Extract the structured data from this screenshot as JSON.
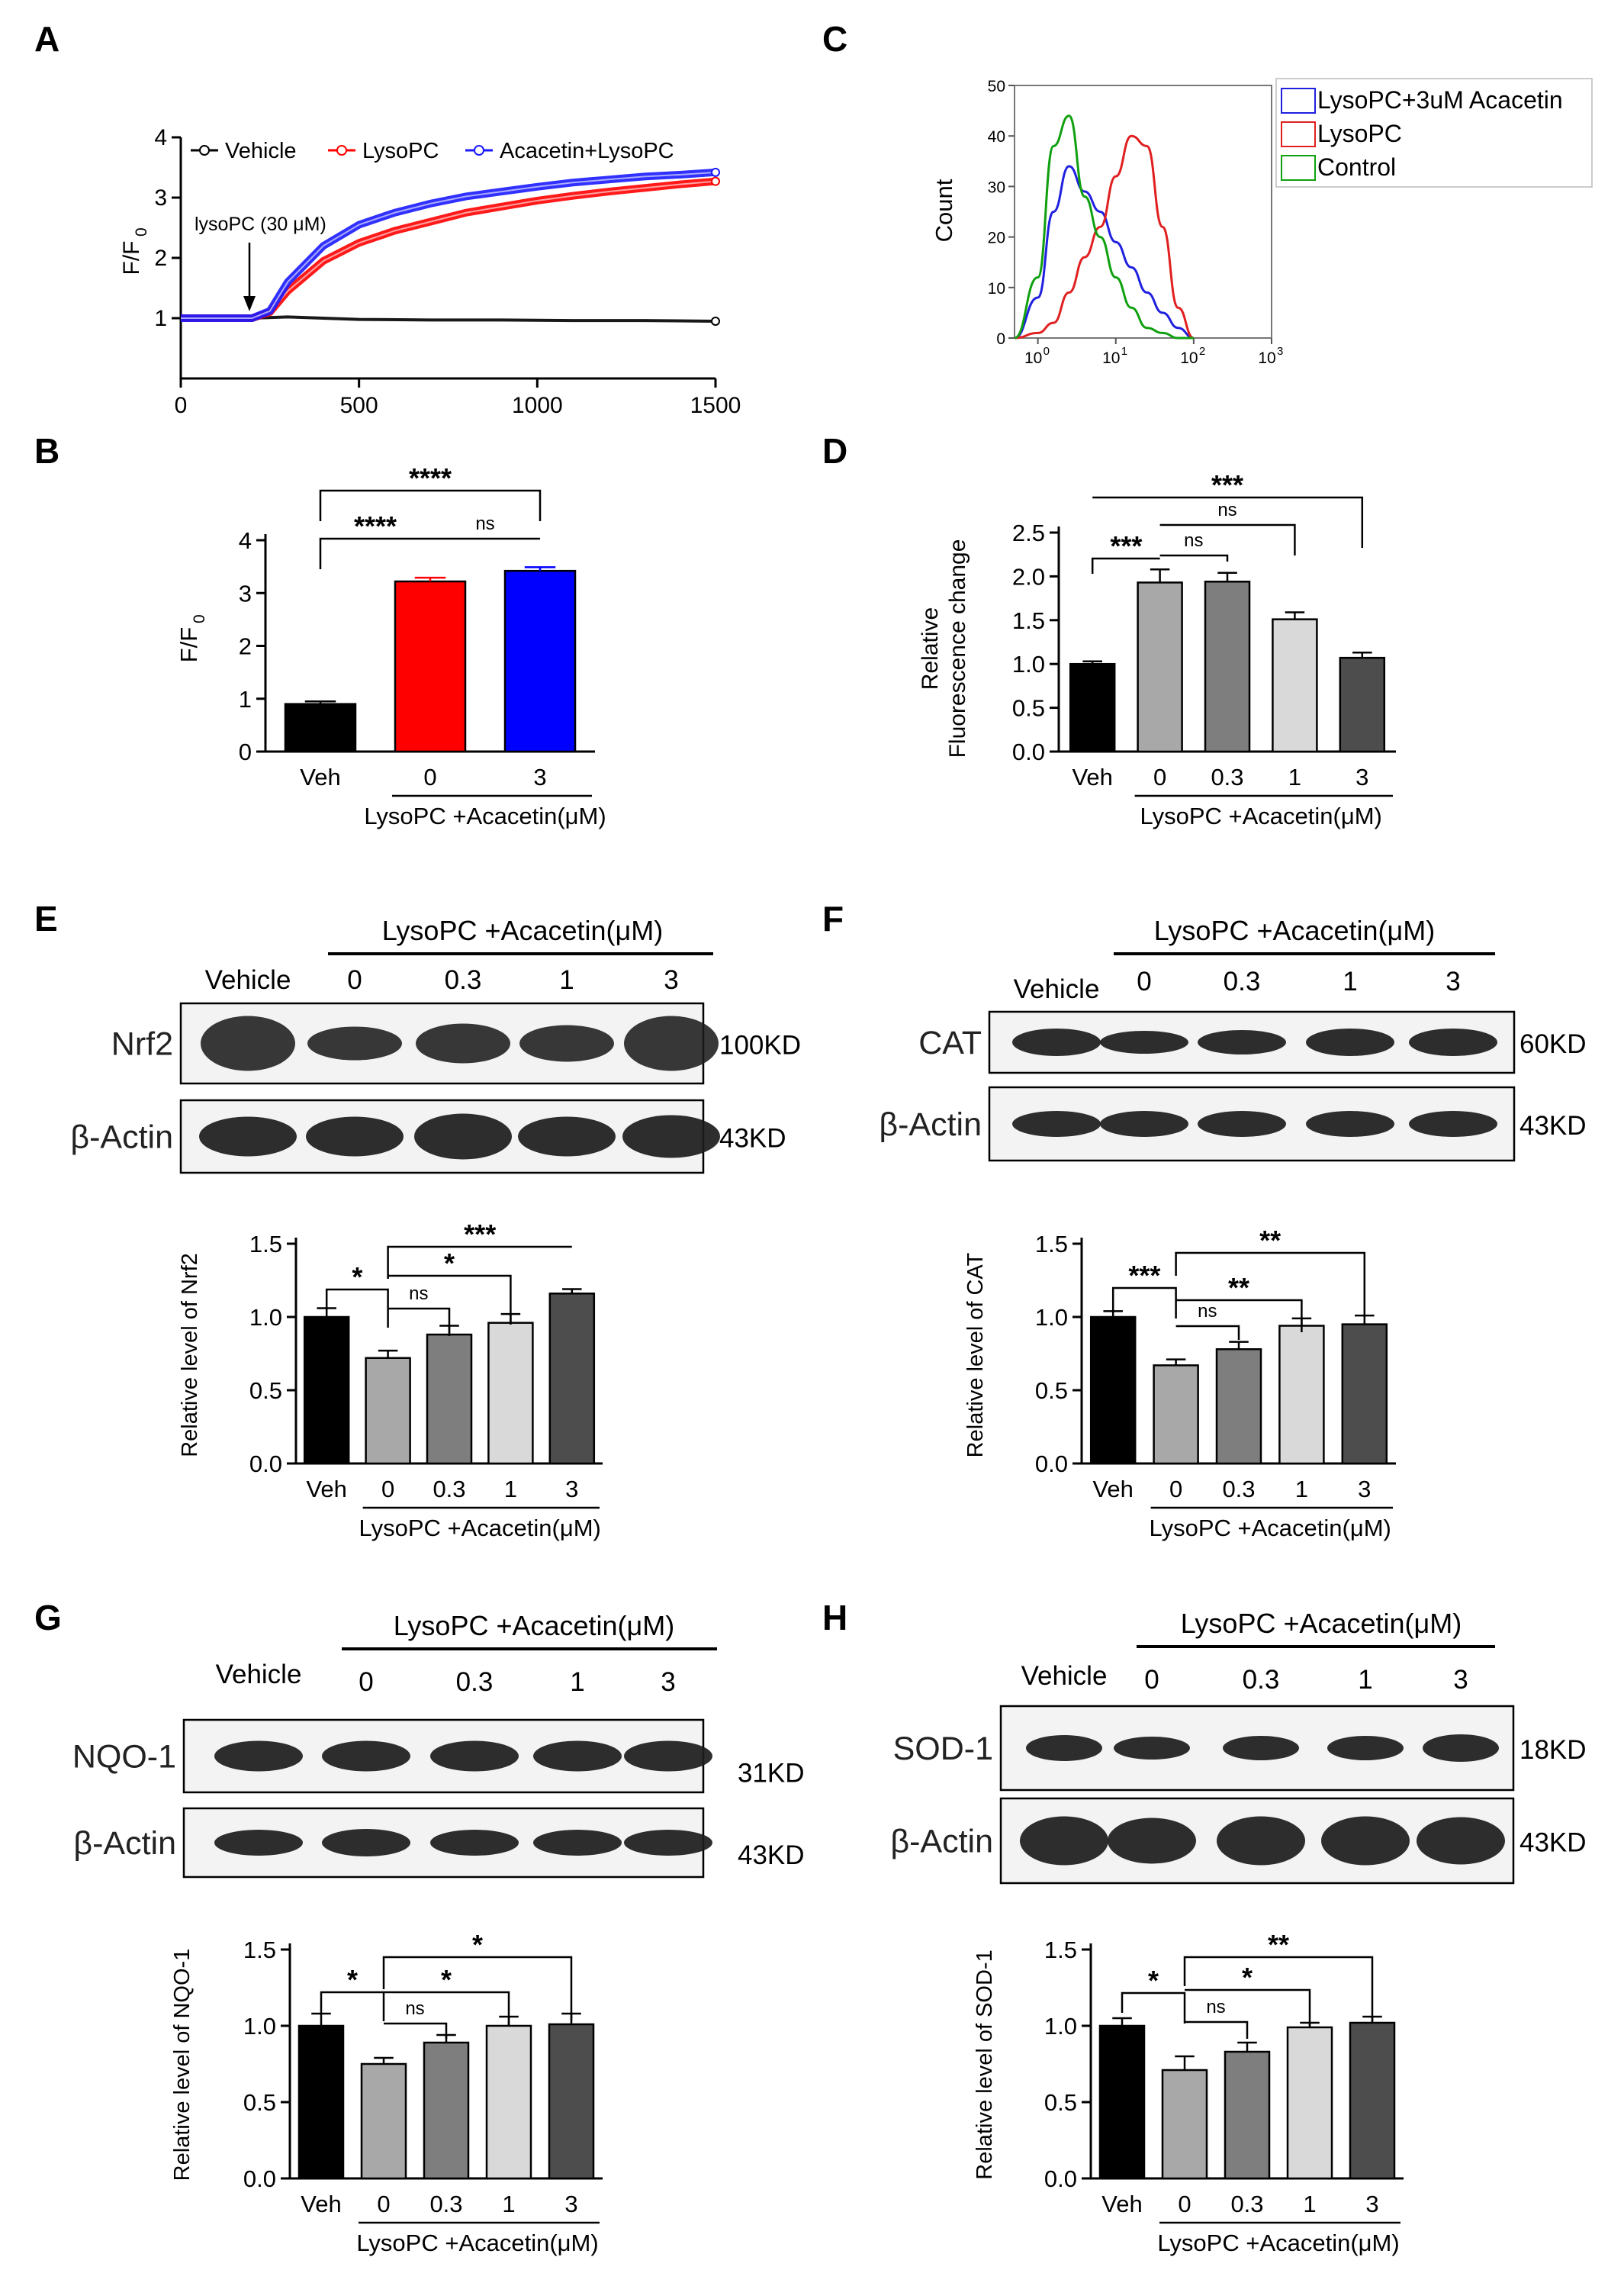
{
  "panels": {
    "A": {
      "letter": "A",
      "chart_type": "line",
      "legend": [
        "Vehicle",
        "LysoPC",
        "Acacetin+LysoPC"
      ],
      "annotation": "lysoPC (30 μM)",
      "ylabel": "F/F",
      "ylabel_sub": "0",
      "xlim": [
        0,
        1500
      ],
      "ylim": [
        0,
        4
      ],
      "xticks": [
        "0",
        "500",
        "1000",
        "1500"
      ],
      "yticks": [
        "1",
        "2",
        "3",
        "4"
      ]
    },
    "B": {
      "letter": "B",
      "ylabel": "F/F",
      "ylabel_sub": "0",
      "yticks": [
        "0",
        "1",
        "2",
        "3",
        "4"
      ],
      "categories": [
        "Veh",
        "0",
        "3"
      ],
      "group_label": "LysoPC +Acacetin(μM)",
      "sig": [
        "****",
        "****",
        "ns"
      ]
    },
    "C": {
      "letter": "C",
      "ylabel": "Count",
      "yticks": [
        "0",
        "10",
        "20",
        "30",
        "40",
        "50"
      ],
      "xticks": [
        "10",
        "10",
        "10",
        "10"
      ],
      "xtick_exp": [
        "0",
        "1",
        "2",
        "3"
      ],
      "legend": [
        "LysoPC+3uM Acacetin",
        "LysoPC",
        "Control"
      ]
    },
    "D": {
      "letter": "D",
      "ylabel1": "Relative",
      "ylabel2": "Fluorescence change",
      "yticks": [
        "0.0",
        "0.5",
        "1.0",
        "1.5",
        "2.0",
        "2.5"
      ],
      "categories": [
        "Veh",
        "0",
        "0.3",
        "1",
        "3"
      ],
      "group_label": "LysoPC +Acacetin(μM)",
      "sig": [
        "***",
        "***",
        "ns",
        "ns"
      ]
    },
    "E": {
      "letter": "E",
      "header": "LysoPC +Acacetin(μM)",
      "lanes": [
        "Vehicle",
        "0",
        "0.3",
        "1",
        "3"
      ],
      "row1": "Nrf2",
      "row1_kd": "100KD",
      "row2": "β-Actin",
      "row2_kd": "43KD",
      "ylabel": "Relative level of  Nrf2",
      "yticks": [
        "0.0",
        "0.5",
        "1.0",
        "1.5"
      ],
      "categories": [
        "Veh",
        "0",
        "0.3",
        "1",
        "3"
      ],
      "group_label": "LysoPC +Acacetin(μM)",
      "sig": [
        "*",
        "***",
        "*",
        "ns"
      ]
    },
    "F": {
      "letter": "F",
      "header": "LysoPC +Acacetin(μM)",
      "lanes": [
        "Vehicle",
        "0",
        "0.3",
        "1",
        "3"
      ],
      "row1": "CAT",
      "row1_kd": "60KD",
      "row2": "β-Actin",
      "row2_kd": "43KD",
      "ylabel": "Relative level of CAT",
      "yticks": [
        "0.0",
        "0.5",
        "1.0",
        "1.5"
      ],
      "categories": [
        "Veh",
        "0",
        "0.3",
        "1",
        "3"
      ],
      "group_label": "LysoPC +Acacetin(μM)",
      "sig": [
        "***",
        "**",
        "**",
        "ns"
      ]
    },
    "G": {
      "letter": "G",
      "header": "LysoPC +Acacetin(μM)",
      "lanes": [
        "Vehicle",
        "0",
        "0.3",
        "1",
        "3"
      ],
      "row1": "NQO-1",
      "row1_kd": "31KD",
      "row2": "β-Actin",
      "row2_kd": "43KD",
      "ylabel": "Relative level of NQO-1",
      "yticks": [
        "0.0",
        "0.5",
        "1.0",
        "1.5"
      ],
      "categories": [
        "Veh",
        "0",
        "0.3",
        "1",
        "3"
      ],
      "group_label": "LysoPC +Acacetin(μM)",
      "sig": [
        "*",
        "*",
        "*",
        "ns"
      ]
    },
    "H": {
      "letter": "H",
      "header": "LysoPC +Acacetin(μM)",
      "lanes": [
        "Vehicle",
        "0",
        "0.3",
        "1",
        "3"
      ],
      "row1": "SOD-1",
      "row1_kd": "18KD",
      "row2": "β-Actin",
      "row2_kd": "43KD",
      "ylabel": "Relative level of SOD-1",
      "yticks": [
        "0.0",
        "0.5",
        "1.0",
        "1.5"
      ],
      "categories": [
        "Veh",
        "0",
        "0.3",
        "1",
        "3"
      ],
      "group_label": "LysoPC +Acacetin(μM)",
      "sig": [
        "*",
        "**",
        "*",
        "ns"
      ]
    }
  },
  "chart_data": [
    {
      "panel": "A",
      "type": "line",
      "ylabel": "F/F0",
      "xlim": [
        0,
        1500
      ],
      "ylim": [
        0,
        4
      ],
      "series": [
        {
          "name": "Vehicle",
          "color": "#000000",
          "x": [
            0,
            200,
            300,
            400,
            500,
            700,
            900,
            1100,
            1300,
            1500
          ],
          "y": [
            1.0,
            1.0,
            1.02,
            1.0,
            0.98,
            0.97,
            0.97,
            0.96,
            0.96,
            0.95
          ]
        },
        {
          "name": "LysoPC",
          "color": "#ff0000",
          "x": [
            0,
            200,
            250,
            300,
            400,
            500,
            600,
            700,
            800,
            900,
            1000,
            1100,
            1200,
            1300,
            1400,
            1500
          ],
          "y": [
            1.0,
            1.0,
            1.1,
            1.45,
            1.95,
            2.25,
            2.45,
            2.6,
            2.75,
            2.85,
            2.95,
            3.03,
            3.1,
            3.16,
            3.22,
            3.27
          ]
        },
        {
          "name": "Acacetin+LysoPC",
          "color": "#1a1aff",
          "x": [
            0,
            200,
            250,
            300,
            400,
            500,
            600,
            700,
            800,
            900,
            1000,
            1100,
            1200,
            1300,
            1400,
            1500
          ],
          "y": [
            1.0,
            1.0,
            1.12,
            1.6,
            2.2,
            2.55,
            2.75,
            2.9,
            3.02,
            3.1,
            3.18,
            3.25,
            3.3,
            3.35,
            3.38,
            3.42
          ]
        }
      ]
    },
    {
      "panel": "B",
      "type": "bar",
      "ylim": [
        0,
        4
      ],
      "categories": [
        "Veh",
        "0",
        "3"
      ],
      "values": [
        0.9,
        3.22,
        3.42
      ],
      "errors": [
        0.05,
        0.07,
        0.07
      ],
      "colors": [
        "#000000",
        "#ff0000",
        "#0000ff"
      ]
    },
    {
      "panel": "C",
      "type": "area",
      "ylabel": "Count",
      "ylim": [
        0,
        50
      ],
      "x_log10": [
        -0.3,
        0,
        0.2,
        0.4,
        0.6,
        0.8,
        1.0,
        1.2,
        1.4,
        1.6,
        1.8,
        2.0
      ],
      "series": [
        {
          "name": "LysoPC+3uM Acacetin",
          "color": "#2020e0",
          "y": [
            0,
            8,
            25,
            34,
            29,
            25,
            19,
            14,
            9,
            5,
            2,
            0
          ]
        },
        {
          "name": "LysoPC",
          "color": "#e02020",
          "y": [
            0,
            1,
            3,
            9,
            16,
            22,
            32,
            40,
            38,
            22,
            6,
            0
          ]
        },
        {
          "name": "Control",
          "color": "#10a010",
          "y": [
            0,
            12,
            38,
            44,
            28,
            20,
            12,
            6,
            2,
            1,
            0,
            0
          ]
        }
      ]
    },
    {
      "panel": "D",
      "type": "bar",
      "ylim": [
        0,
        2.5
      ],
      "categories": [
        "Veh",
        "0",
        "0.3",
        "1",
        "3"
      ],
      "values": [
        1.0,
        1.93,
        1.94,
        1.51,
        1.07
      ],
      "errors": [
        0.03,
        0.15,
        0.1,
        0.08,
        0.06
      ],
      "colors": [
        "#000000",
        "#a8a8a8",
        "#7e7e7e",
        "#d9d9d9",
        "#4d4d4d"
      ]
    },
    {
      "panel": "E",
      "type": "bar",
      "ylim": [
        0,
        1.5
      ],
      "categories": [
        "Veh",
        "0",
        "0.3",
        "1",
        "3"
      ],
      "values": [
        1.0,
        0.72,
        0.88,
        0.96,
        1.16
      ],
      "errors": [
        0.06,
        0.05,
        0.06,
        0.06,
        0.03
      ],
      "colors": [
        "#000000",
        "#a8a8a8",
        "#7e7e7e",
        "#d9d9d9",
        "#4d4d4d"
      ]
    },
    {
      "panel": "F",
      "type": "bar",
      "ylim": [
        0,
        1.5
      ],
      "categories": [
        "Veh",
        "0",
        "0.3",
        "1",
        "3"
      ],
      "values": [
        1.0,
        0.67,
        0.78,
        0.94,
        0.95
      ],
      "errors": [
        0.04,
        0.04,
        0.05,
        0.05,
        0.06
      ],
      "colors": [
        "#000000",
        "#a8a8a8",
        "#7e7e7e",
        "#d9d9d9",
        "#4d4d4d"
      ]
    },
    {
      "panel": "G",
      "type": "bar",
      "ylim": [
        0,
        1.5
      ],
      "categories": [
        "Veh",
        "0",
        "0.3",
        "1",
        "3"
      ],
      "values": [
        1.0,
        0.75,
        0.89,
        1.0,
        1.01
      ],
      "errors": [
        0.08,
        0.04,
        0.05,
        0.06,
        0.07
      ],
      "colors": [
        "#000000",
        "#a8a8a8",
        "#7e7e7e",
        "#d9d9d9",
        "#4d4d4d"
      ]
    },
    {
      "panel": "H",
      "type": "bar",
      "ylim": [
        0,
        1.5
      ],
      "categories": [
        "Veh",
        "0",
        "0.3",
        "1",
        "3"
      ],
      "values": [
        1.0,
        0.71,
        0.83,
        0.99,
        1.02
      ],
      "errors": [
        0.05,
        0.09,
        0.06,
        0.03,
        0.04
      ],
      "colors": [
        "#000000",
        "#a8a8a8",
        "#7e7e7e",
        "#d9d9d9",
        "#4d4d4d"
      ]
    }
  ]
}
